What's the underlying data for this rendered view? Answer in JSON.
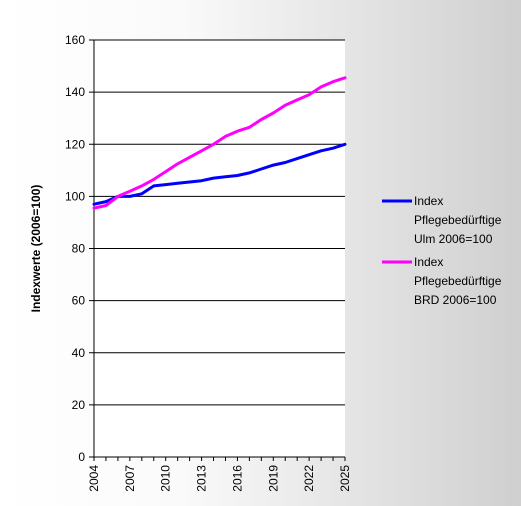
{
  "chart_data": {
    "type": "line",
    "ylabel": "Indexwerte (2006=100)",
    "xlabel": "",
    "ylim": [
      0,
      160
    ],
    "yticks": [
      0,
      20,
      40,
      60,
      80,
      100,
      120,
      140,
      160
    ],
    "xlim": [
      2004,
      2025
    ],
    "xticks": [
      "2004",
      "2007",
      "2010",
      "2013",
      "2016",
      "2019",
      "2022",
      "2025"
    ],
    "grid": true,
    "legend_position": "right",
    "x": [
      2004,
      2005,
      2006,
      2007,
      2008,
      2009,
      2010,
      2011,
      2012,
      2013,
      2014,
      2015,
      2016,
      2017,
      2018,
      2019,
      2020,
      2021,
      2022,
      2023,
      2024,
      2025
    ],
    "series": [
      {
        "name_lines": [
          "Index",
          "Pflegebedürftige",
          "Ulm 2006=100"
        ],
        "color": "#0000ff",
        "values": [
          97,
          98,
          100,
          100,
          101,
          104,
          104.5,
          105,
          105.5,
          106,
          107,
          107.5,
          108,
          109,
          110.5,
          112,
          113,
          114.5,
          116,
          117.5,
          118.5,
          120
        ]
      },
      {
        "name_lines": [
          "Index",
          "Pflegebedürftige",
          "BRD 2006=100"
        ],
        "color": "#ff00ff",
        "values": [
          95.5,
          96.5,
          100,
          102,
          104,
          106.5,
          109.5,
          112.5,
          115,
          117.5,
          120,
          123,
          125,
          126.5,
          129.5,
          132,
          135,
          137,
          139,
          142,
          144,
          145.5
        ]
      }
    ]
  }
}
